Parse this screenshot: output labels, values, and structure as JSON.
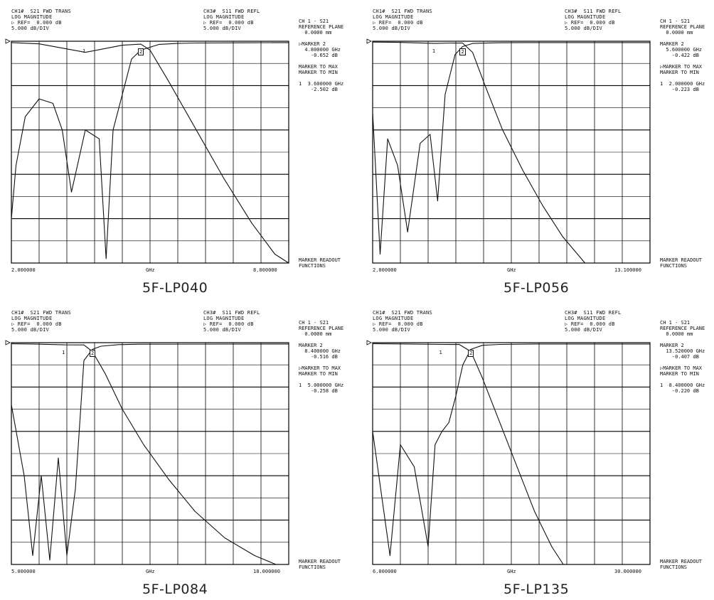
{
  "panels": [
    {
      "caption": "5F-LP040",
      "ch1": [
        "CH1#  S21 FWD TRANS",
        "LOG MAGNITUDE",
        "▷ REF=  0.000 dB",
        "5.000 dB/DIV"
      ],
      "ch3": [
        "CH3#  S11 FWD REFL",
        "LOG MAGNITUDE",
        "▷ REF=  0.000 dB",
        "5.000 dB/DIV"
      ],
      "side": [
        "CH 1 - S21",
        "REFERENCE PLANE",
        "  0.0000 mm",
        "",
        "▷MARKER 2",
        "  4.800000 GHz",
        "    -0.652 dB",
        "",
        "MARKER TO MAX",
        "MARKER TO MIN",
        "",
        "1  3.600000 GHz",
        "    -2.502 dB"
      ],
      "readout": [
        "MARKER READOUT",
        "FUNCTIONS"
      ],
      "x_start": "2.000000",
      "x_unit": "GHz",
      "x_stop": "8.000000",
      "marker1": "1",
      "marker2": "2"
    },
    {
      "caption": "5F-LP056",
      "ch1": [
        "CH1#  S21 FWD TRANS",
        "LOG MAGNITUDE",
        "▷ REF=  0.000 dB",
        "5.000 dB/DIV"
      ],
      "ch3": [
        "CH3#  S11 FWD REFL",
        "LOG MAGNITUDE",
        "▷ REF=  0.000 dB",
        "5.000 dB/DIV"
      ],
      "side": [
        "CH 1 - S21",
        "REFERENCE PLANE",
        "  0.0000 mm",
        "",
        "MARKER 2",
        "  5.600000 GHz",
        "    -0.422 dB",
        "",
        "▷MARKER TO MAX",
        "MARKER TO MIN",
        "",
        "1  2.000000 GHz",
        "    -0.223 dB"
      ],
      "readout": [
        "MARKER READOUT",
        "FUNCTIONS"
      ],
      "x_start": "2.000000",
      "x_unit": "GHz",
      "x_stop": "13.100000",
      "marker1": "1",
      "marker2": "2"
    },
    {
      "caption": "5F-LP084",
      "ch1": [
        "CH1#  S21 FWD TRANS",
        "LOG MAGNITUDE",
        "▷ REF=  0.000 dB",
        "5.000 dB/DIV"
      ],
      "ch3": [
        "CH3#  S11 FWD REFL",
        "LOG MAGNITUDE",
        "▷ REF=  0.000 dB",
        "5.000 dB/DIV"
      ],
      "side": [
        "CH 1 - S21",
        "REFERENCE PLANE",
        "  0.0000 mm",
        "",
        "MARKER 2",
        "  8.400000 GHz",
        "    -0.516 dB",
        "",
        "▷MARKER TO MAX",
        "MARKER TO MIN",
        "",
        "1  5.000000 GHz",
        "    -0.258 dB"
      ],
      "readout": [
        "MARKER READOUT",
        "FUNCTIONS"
      ],
      "x_start": "5.000000",
      "x_unit": "GHz",
      "x_stop": "18.000000",
      "marker1": "1",
      "marker2": "2"
    },
    {
      "caption": "5F-LP135",
      "ch1": [
        "CH1#  S21 FWD TRANS",
        "LOG MAGNITUDE",
        "▷ REF=  0.000 dB",
        "5.000 dB/DIV"
      ],
      "ch3": [
        "CH3#  S11 FWD REFL",
        "LOG MAGNITUDE",
        "▷ REF=  0.000 dB",
        "5.000 dB/DIV"
      ],
      "side": [
        "CH 1 - S21",
        "REFERENCE PLANE",
        "  0.0000 mm",
        "",
        "MARKER 2",
        "  13.520000 GHz",
        "    -0.407 dB",
        "",
        "▷MARKER TO MAX",
        "MARKER TO MIN",
        "",
        "1  8.400000 GHz",
        "    -0.220 dB"
      ],
      "readout": [
        "MARKER READOUT",
        "FUNCTIONS"
      ],
      "x_start": "6.000000",
      "x_unit": "GHz",
      "x_stop": "30.000000",
      "marker1": "1",
      "marker2": "2"
    }
  ],
  "chart_data": [
    {
      "type": "line",
      "title": "5F-LP040",
      "xlim": [
        2,
        8
      ],
      "ylim": [
        -50,
        0
      ],
      "grid": true,
      "series": [
        {
          "name": "S21 FWD TRANS",
          "x": [
            2,
            2.6,
            3.6,
            4.4,
            4.8,
            5.0,
            5.4,
            6.0,
            6.6,
            7.2,
            7.7,
            8.0
          ],
          "y": [
            -0.3,
            -0.6,
            -2.5,
            -0.9,
            -0.65,
            -2,
            -9,
            -20,
            -31,
            -41,
            -48,
            -50
          ]
        },
        {
          "name": "S11 FWD REFL",
          "x": [
            2,
            2.1,
            2.3,
            2.6,
            2.9,
            3.1,
            3.3,
            3.6,
            3.9,
            4.05,
            4.2,
            4.6,
            4.8,
            5.2,
            5.6,
            6,
            7,
            8
          ],
          "y": [
            -40,
            -28,
            -17,
            -13,
            -14,
            -20,
            -34,
            -20,
            -22,
            -49,
            -20,
            -4,
            -2,
            -0.7,
            -0.5,
            -0.4,
            -0.35,
            -0.3
          ]
        }
      ]
    },
    {
      "type": "line",
      "title": "5F-LP056",
      "xlim": [
        2,
        13.1
      ],
      "ylim": [
        -50,
        0
      ],
      "grid": true,
      "series": [
        {
          "name": "S21 FWD TRANS",
          "x": [
            2,
            3,
            4.5,
            5.2,
            5.6,
            6.0,
            6.5,
            7.2,
            8.0,
            8.8,
            9.6,
            10.5
          ],
          "y": [
            -0.2,
            -0.25,
            -0.5,
            -0.4,
            -0.42,
            -2.5,
            -10,
            -20,
            -29,
            -37,
            -44,
            -50
          ]
        },
        {
          "name": "S11 FWD REFL",
          "x": [
            2,
            2.3,
            2.6,
            3.0,
            3.4,
            3.9,
            4.3,
            4.6,
            4.9,
            5.3,
            5.6,
            6,
            7,
            8,
            13.1
          ],
          "y": [
            -16,
            -48,
            -22,
            -28,
            -43,
            -23,
            -21,
            -36,
            -12,
            -3,
            -1.2,
            -0.5,
            -0.35,
            -0.3,
            -0.3
          ]
        }
      ]
    },
    {
      "type": "line",
      "title": "5F-LP084",
      "xlim": [
        5,
        18
      ],
      "ylim": [
        -50,
        0
      ],
      "grid": true,
      "series": [
        {
          "name": "S21 FWD TRANS",
          "x": [
            5,
            6,
            7.5,
            8.4,
            8.8,
            9.4,
            10.2,
            11.2,
            12.4,
            13.6,
            15.0,
            16.4,
            17.4
          ],
          "y": [
            -0.26,
            -0.3,
            -0.5,
            -0.52,
            -2,
            -7,
            -15,
            -23,
            -31,
            -38,
            -44,
            -48,
            -50
          ]
        },
        {
          "name": "S11 FWD REFL",
          "x": [
            5,
            5.6,
            6.0,
            6.4,
            6.8,
            7.2,
            7.6,
            8.0,
            8.4,
            8.8,
            9.2,
            10,
            11,
            18
          ],
          "y": [
            -14,
            -30,
            -48,
            -30,
            -49,
            -26,
            -48,
            -33,
            -4,
            -1.5,
            -0.8,
            -0.45,
            -0.35,
            -0.3
          ]
        }
      ]
    },
    {
      "type": "line",
      "title": "5F-LP135",
      "xlim": [
        6,
        30
      ],
      "ylim": [
        -50,
        0
      ],
      "grid": true,
      "series": [
        {
          "name": "S21 FWD TRANS",
          "x": [
            6,
            9,
            12,
            13.5,
            14.5,
            15.5,
            17,
            18.5,
            20,
            21.5,
            22.5
          ],
          "y": [
            -0.22,
            -0.3,
            -0.4,
            -0.41,
            -2,
            -8,
            -18,
            -28,
            -38,
            -46,
            -50
          ]
        },
        {
          "name": "S11 FWD REFL",
          "x": [
            6,
            7.5,
            8.4,
            9.6,
            10.8,
            11.4,
            12.0,
            12.6,
            13.2,
            13.8,
            14.5,
            15.5,
            17,
            20,
            30
          ],
          "y": [
            -20,
            -48,
            -23,
            -28,
            -46,
            -23,
            -20,
            -18,
            -12,
            -5,
            -1.5,
            -0.6,
            -0.4,
            -0.3,
            -0.3
          ]
        }
      ]
    }
  ]
}
